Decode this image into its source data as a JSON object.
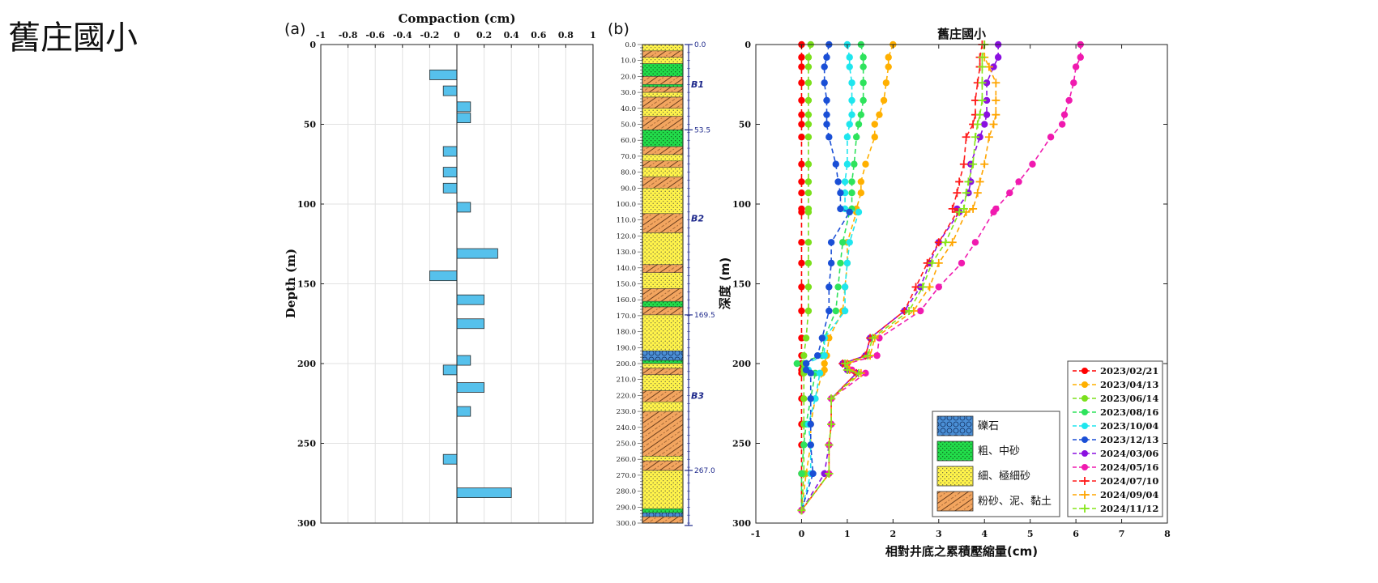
{
  "page_title": "舊庄國小",
  "chart_data": [
    {
      "type": "bar",
      "orientation": "horizontal",
      "panel_label": "(a)",
      "title": "Compaction (cm)",
      "xlabel": "Compaction (cm)",
      "ylabel": "Depth (m)",
      "xlim": [
        -1,
        1
      ],
      "ylim": [
        0,
        300
      ],
      "xticks": [
        "-1",
        "-0.8",
        "-0.6",
        "-0.4",
        "-0.2",
        "0",
        "0.2",
        "0.4",
        "0.6",
        "0.8",
        "1"
      ],
      "yticks": [
        "0",
        "50",
        "100",
        "150",
        "200",
        "250",
        "300"
      ],
      "grid": true,
      "bar_color": "#56c1ec",
      "depths": [
        19,
        29,
        39,
        46,
        67,
        80,
        90,
        102,
        131,
        145,
        160,
        175,
        198,
        204,
        215,
        230,
        260,
        281
      ],
      "values": [
        -0.2,
        -0.1,
        0.1,
        0.1,
        -0.1,
        -0.1,
        -0.1,
        0.1,
        0.3,
        -0.2,
        0.2,
        0.2,
        0.1,
        -0.1,
        0.2,
        0.1,
        -0.1,
        0.4
      ]
    },
    {
      "type": "table",
      "subtype": "stratigraphic-column",
      "panel_label": "(b)",
      "depth_ticks": [
        "0.0",
        "10.0",
        "20.0",
        "30.0",
        "40.0",
        "50.0",
        "60.0",
        "70.0",
        "80.0",
        "90.0",
        "100.0",
        "110.0",
        "120.0",
        "130.0",
        "140.0",
        "150.0",
        "160.0",
        "170.0",
        "180.0",
        "190.0",
        "200.0",
        "210.0",
        "220.0",
        "230.0",
        "240.0",
        "250.0",
        "260.0",
        "270.0",
        "280.0",
        "290.0",
        "300.0"
      ],
      "boundaries": [
        "0.0",
        "53.5",
        "169.5",
        "267.0"
      ],
      "zones": [
        {
          "label": "B1",
          "depth": 27
        },
        {
          "label": "B2",
          "depth": 111
        },
        {
          "label": "B3",
          "depth": 222
        }
      ],
      "layers": [
        {
          "top": 0,
          "bottom": 4,
          "lith": "fine"
        },
        {
          "top": 4,
          "bottom": 8,
          "lith": "silt"
        },
        {
          "top": 8,
          "bottom": 12,
          "lith": "fine"
        },
        {
          "top": 12,
          "bottom": 20,
          "lith": "coarse"
        },
        {
          "top": 20,
          "bottom": 25,
          "lith": "silt"
        },
        {
          "top": 25,
          "bottom": 26.5,
          "lith": "coarse"
        },
        {
          "top": 26.5,
          "bottom": 30,
          "lith": "silt"
        },
        {
          "top": 30,
          "bottom": 33,
          "lith": "fine"
        },
        {
          "top": 33,
          "bottom": 40,
          "lith": "silt"
        },
        {
          "top": 40,
          "bottom": 45,
          "lith": "fine"
        },
        {
          "top": 45,
          "bottom": 53.5,
          "lith": "silt"
        },
        {
          "top": 53.5,
          "bottom": 64,
          "lith": "coarse"
        },
        {
          "top": 64,
          "bottom": 69,
          "lith": "silt"
        },
        {
          "top": 69,
          "bottom": 73,
          "lith": "fine"
        },
        {
          "top": 73,
          "bottom": 77,
          "lith": "silt"
        },
        {
          "top": 77,
          "bottom": 83,
          "lith": "fine"
        },
        {
          "top": 83,
          "bottom": 90,
          "lith": "silt"
        },
        {
          "top": 90,
          "bottom": 106,
          "lith": "fine"
        },
        {
          "top": 106,
          "bottom": 118,
          "lith": "silt"
        },
        {
          "top": 118,
          "bottom": 138,
          "lith": "fine"
        },
        {
          "top": 138,
          "bottom": 143,
          "lith": "silt"
        },
        {
          "top": 143,
          "bottom": 153,
          "lith": "fine"
        },
        {
          "top": 153,
          "bottom": 161,
          "lith": "silt"
        },
        {
          "top": 161,
          "bottom": 164.5,
          "lith": "coarse"
        },
        {
          "top": 164.5,
          "bottom": 169.5,
          "lith": "silt"
        },
        {
          "top": 169.5,
          "bottom": 192,
          "lith": "fine"
        },
        {
          "top": 192,
          "bottom": 198,
          "lith": "gravel"
        },
        {
          "top": 198,
          "bottom": 200,
          "lith": "coarse"
        },
        {
          "top": 200,
          "bottom": 203,
          "lith": "fine"
        },
        {
          "top": 203,
          "bottom": 207,
          "lith": "silt"
        },
        {
          "top": 207,
          "bottom": 217,
          "lith": "fine"
        },
        {
          "top": 217,
          "bottom": 224,
          "lith": "silt"
        },
        {
          "top": 224,
          "bottom": 230,
          "lith": "fine"
        },
        {
          "top": 230,
          "bottom": 258,
          "lith": "silt"
        },
        {
          "top": 258,
          "bottom": 261,
          "lith": "fine"
        },
        {
          "top": 261,
          "bottom": 267,
          "lith": "silt"
        },
        {
          "top": 267,
          "bottom": 291,
          "lith": "fine"
        },
        {
          "top": 291,
          "bottom": 293.5,
          "lith": "coarse"
        },
        {
          "top": 293.5,
          "bottom": 296,
          "lith": "gravel"
        },
        {
          "top": 296,
          "bottom": 300,
          "lith": "silt"
        }
      ]
    },
    {
      "type": "line",
      "title": "舊庄國小",
      "xlabel": "相對井底之累積壓縮量(cm)",
      "ylabel": "深度 (m)",
      "xlim": [
        -1,
        8
      ],
      "ylim": [
        0,
        300
      ],
      "xticks": [
        "-1",
        "0",
        "1",
        "2",
        "3",
        "4",
        "5",
        "6",
        "7",
        "8"
      ],
      "yticks": [
        "0",
        "50",
        "100",
        "150",
        "200",
        "250",
        "300"
      ],
      "depths": [
        0,
        8,
        14,
        24,
        35,
        44,
        50,
        58,
        75,
        86,
        93,
        103,
        105,
        124,
        137,
        152,
        167,
        184,
        195,
        200,
        204,
        206,
        222,
        238,
        251,
        269,
        292
      ],
      "series": [
        {
          "name": "2023/02/21",
          "color": "#ff0000",
          "marker": "dot",
          "values": [
            0.0,
            0.0,
            0.0,
            0.0,
            0.0,
            0.0,
            0.0,
            0.0,
            0.0,
            0.0,
            0.0,
            0.0,
            0.0,
            0.0,
            0.0,
            0.0,
            0.0,
            0.0,
            0.0,
            0.0,
            0.0,
            0.0,
            0.0,
            0.0,
            0.0,
            0.0,
            0.0
          ]
        },
        {
          "name": "2023/04/13",
          "color": "#ffb000",
          "marker": "dot",
          "values": [
            2.0,
            1.9,
            1.9,
            1.85,
            1.8,
            1.7,
            1.6,
            1.6,
            1.4,
            1.3,
            1.3,
            1.2,
            1.2,
            1.0,
            1.0,
            0.95,
            0.9,
            0.6,
            0.55,
            0.5,
            0.5,
            0.45,
            0.3,
            0.2,
            0.2,
            0.1,
            0.0
          ]
        },
        {
          "name": "2023/06/14",
          "color": "#7be01c",
          "marker": "dot",
          "values": [
            0.2,
            0.15,
            0.15,
            0.15,
            0.15,
            0.15,
            0.15,
            0.15,
            0.15,
            0.15,
            0.15,
            0.15,
            0.15,
            0.15,
            0.15,
            0.15,
            0.15,
            0.1,
            0.05,
            0.05,
            0.05,
            0.05,
            0.05,
            0.05,
            0.05,
            0.05,
            0.0
          ]
        },
        {
          "name": "2023/08/16",
          "color": "#2ee35c",
          "marker": "dot",
          "values": [
            1.3,
            1.35,
            1.35,
            1.35,
            1.35,
            1.3,
            1.25,
            1.2,
            1.15,
            1.1,
            1.1,
            1.1,
            1.05,
            0.9,
            0.85,
            0.8,
            0.75,
            0.5,
            0.45,
            -0.1,
            0.1,
            0.3,
            0.2,
            0.1,
            0.05,
            0.0,
            0.0
          ]
        },
        {
          "name": "2023/10/04",
          "color": "#1ee6ee",
          "marker": "dot",
          "values": [
            1.0,
            1.05,
            1.05,
            1.1,
            1.1,
            1.1,
            1.05,
            1.0,
            1.0,
            0.95,
            0.95,
            0.95,
            1.25,
            1.05,
            1.0,
            0.95,
            0.95,
            0.5,
            0.5,
            0.1,
            0.15,
            0.4,
            0.3,
            0.15,
            0.2,
            0.2,
            0.0
          ]
        },
        {
          "name": "2023/12/13",
          "color": "#1a4fd6",
          "marker": "dot",
          "values": [
            0.6,
            0.55,
            0.5,
            0.5,
            0.55,
            0.55,
            0.55,
            0.6,
            0.75,
            0.8,
            0.85,
            0.85,
            1.05,
            0.65,
            0.65,
            0.6,
            0.6,
            0.45,
            0.35,
            0.1,
            0.1,
            0.2,
            0.2,
            0.2,
            0.2,
            0.25,
            0.0
          ]
        },
        {
          "name": "2024/03/06",
          "color": "#8a10e0",
          "marker": "dot",
          "values": [
            4.3,
            4.3,
            4.2,
            4.05,
            4.05,
            4.05,
            4.0,
            3.9,
            3.7,
            3.7,
            3.65,
            3.4,
            3.45,
            3.0,
            2.8,
            2.6,
            2.25,
            1.5,
            1.4,
            0.9,
            1.0,
            1.2,
            0.65,
            0.65,
            0.6,
            0.5,
            0.0
          ]
        },
        {
          "name": "2024/05/16",
          "color": "#f01aaf",
          "marker": "dot",
          "values": [
            6.1,
            6.1,
            6.0,
            5.95,
            5.85,
            5.75,
            5.7,
            5.45,
            5.05,
            4.75,
            4.55,
            4.25,
            4.2,
            3.8,
            3.5,
            3.0,
            2.6,
            1.7,
            1.65,
            1.0,
            1.1,
            1.4,
            0.65,
            0.65,
            0.6,
            0.6,
            0.0
          ]
        },
        {
          "name": "2024/07/10",
          "color": "#ff1a1a",
          "marker": "plus",
          "values": [
            3.95,
            3.9,
            3.9,
            3.85,
            3.8,
            3.8,
            3.75,
            3.6,
            3.55,
            3.45,
            3.4,
            3.3,
            3.4,
            3.0,
            2.75,
            2.5,
            2.25,
            1.5,
            1.4,
            0.9,
            1.0,
            1.2,
            0.65,
            0.65,
            0.6,
            0.6,
            0.0
          ]
        },
        {
          "name": "2024/09/04",
          "color": "#ffa500",
          "marker": "plus",
          "values": [
            4.0,
            4.0,
            4.1,
            4.25,
            4.25,
            4.25,
            4.2,
            4.1,
            4.0,
            3.9,
            3.85,
            3.75,
            3.6,
            3.3,
            3.0,
            2.8,
            2.45,
            1.6,
            1.5,
            1.0,
            1.05,
            1.3,
            0.65,
            0.65,
            0.6,
            0.6,
            0.0
          ]
        },
        {
          "name": "2024/11/12",
          "color": "#86e61a",
          "marker": "plus",
          "values": [
            4.0,
            3.95,
            3.95,
            3.95,
            3.95,
            3.9,
            3.85,
            3.8,
            3.75,
            3.65,
            3.6,
            3.55,
            3.45,
            3.15,
            2.85,
            2.65,
            2.35,
            1.55,
            1.45,
            0.95,
            1.0,
            1.25,
            0.65,
            0.65,
            0.6,
            0.6,
            0.0
          ]
        }
      ]
    }
  ],
  "lith_legend": [
    {
      "key": "gravel",
      "label": "礫石",
      "color": "#4b8fd6"
    },
    {
      "key": "coarse",
      "label": "粗、中砂",
      "color": "#22dc4a"
    },
    {
      "key": "fine",
      "label": "細、極細砂",
      "color": "#fff34a"
    },
    {
      "key": "silt",
      "label": "粉砂、泥、黏土",
      "color": "#f3a55f"
    }
  ]
}
